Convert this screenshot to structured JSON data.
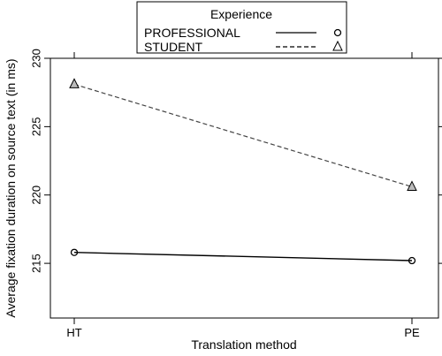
{
  "chart_data": {
    "type": "line",
    "title": "",
    "xlabel": "Translation method",
    "ylabel": "Average fixation duration on source text (in ms)",
    "categories": [
      "HT",
      "PE"
    ],
    "ylim": [
      211,
      230
    ],
    "yticks": [
      215,
      220,
      225,
      230
    ],
    "grid": false,
    "legend": {
      "title": "Experience",
      "placement": "top-center"
    },
    "series": [
      {
        "name": "PROFESSIONAL",
        "values": [
          215.8,
          215.2
        ],
        "line": "solid",
        "marker": "circle"
      },
      {
        "name": "STUDENT",
        "values": [
          228.1,
          220.6
        ],
        "line": "dashed",
        "marker": "triangle"
      }
    ]
  }
}
